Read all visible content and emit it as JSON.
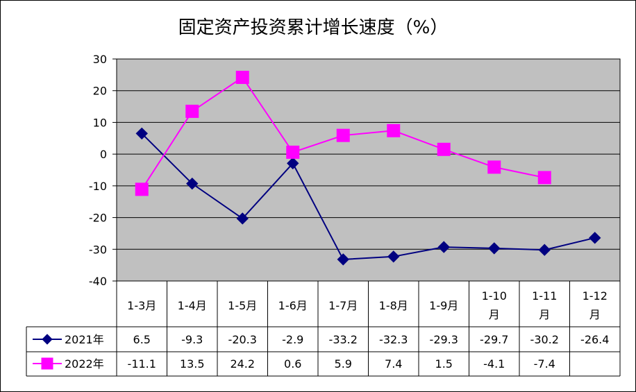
{
  "chart_data": {
    "type": "line",
    "title": "固定资产投资累计增长速度（%）",
    "categories": [
      "1-3月",
      "1-4月",
      "1-5月",
      "1-6月",
      "1-7月",
      "1-8月",
      "1-9月",
      "1-10月",
      "1-11月",
      "1-12月"
    ],
    "category_lines": [
      [
        "1-3月"
      ],
      [
        "1-4月"
      ],
      [
        "1-5月"
      ],
      [
        "1-6月"
      ],
      [
        "1-7月"
      ],
      [
        "1-8月"
      ],
      [
        "1-9月"
      ],
      [
        "1-10",
        "月"
      ],
      [
        "1-11",
        "月"
      ],
      [
        "1-12",
        "月"
      ]
    ],
    "series": [
      {
        "name": "2021年",
        "values": [
          6.5,
          -9.3,
          -20.3,
          -2.9,
          -33.2,
          -32.3,
          -29.3,
          -29.7,
          -30.2,
          -26.4
        ],
        "display_values": [
          "6.5",
          "-9.3",
          "-20.3",
          "-2.9",
          "-33.2",
          "-32.3",
          "-29.3",
          "-29.7",
          "-30.2",
          "-26.4"
        ],
        "color": "#000080",
        "marker": "diamond"
      },
      {
        "name": "2022年",
        "values": [
          -11.1,
          13.5,
          24.2,
          0.6,
          5.9,
          7.4,
          1.5,
          -4.1,
          -7.4,
          null
        ],
        "display_values": [
          "-11.1",
          "13.5",
          "24.2",
          "0.6",
          "5.9",
          "7.4",
          "1.5",
          "-4.1",
          "-7.4",
          ""
        ],
        "color": "#ff00ff",
        "marker": "square"
      }
    ],
    "ylim": [
      -40,
      30
    ],
    "yticks": [
      30,
      20,
      10,
      0,
      -10,
      -20,
      -30,
      -40
    ],
    "ytick_labels": [
      "30",
      "20",
      "10",
      "0",
      "-10",
      "-20",
      "-30",
      "-40"
    ],
    "grid": true,
    "plot_background": "#c0c0c0",
    "legend": "data-table-left"
  }
}
